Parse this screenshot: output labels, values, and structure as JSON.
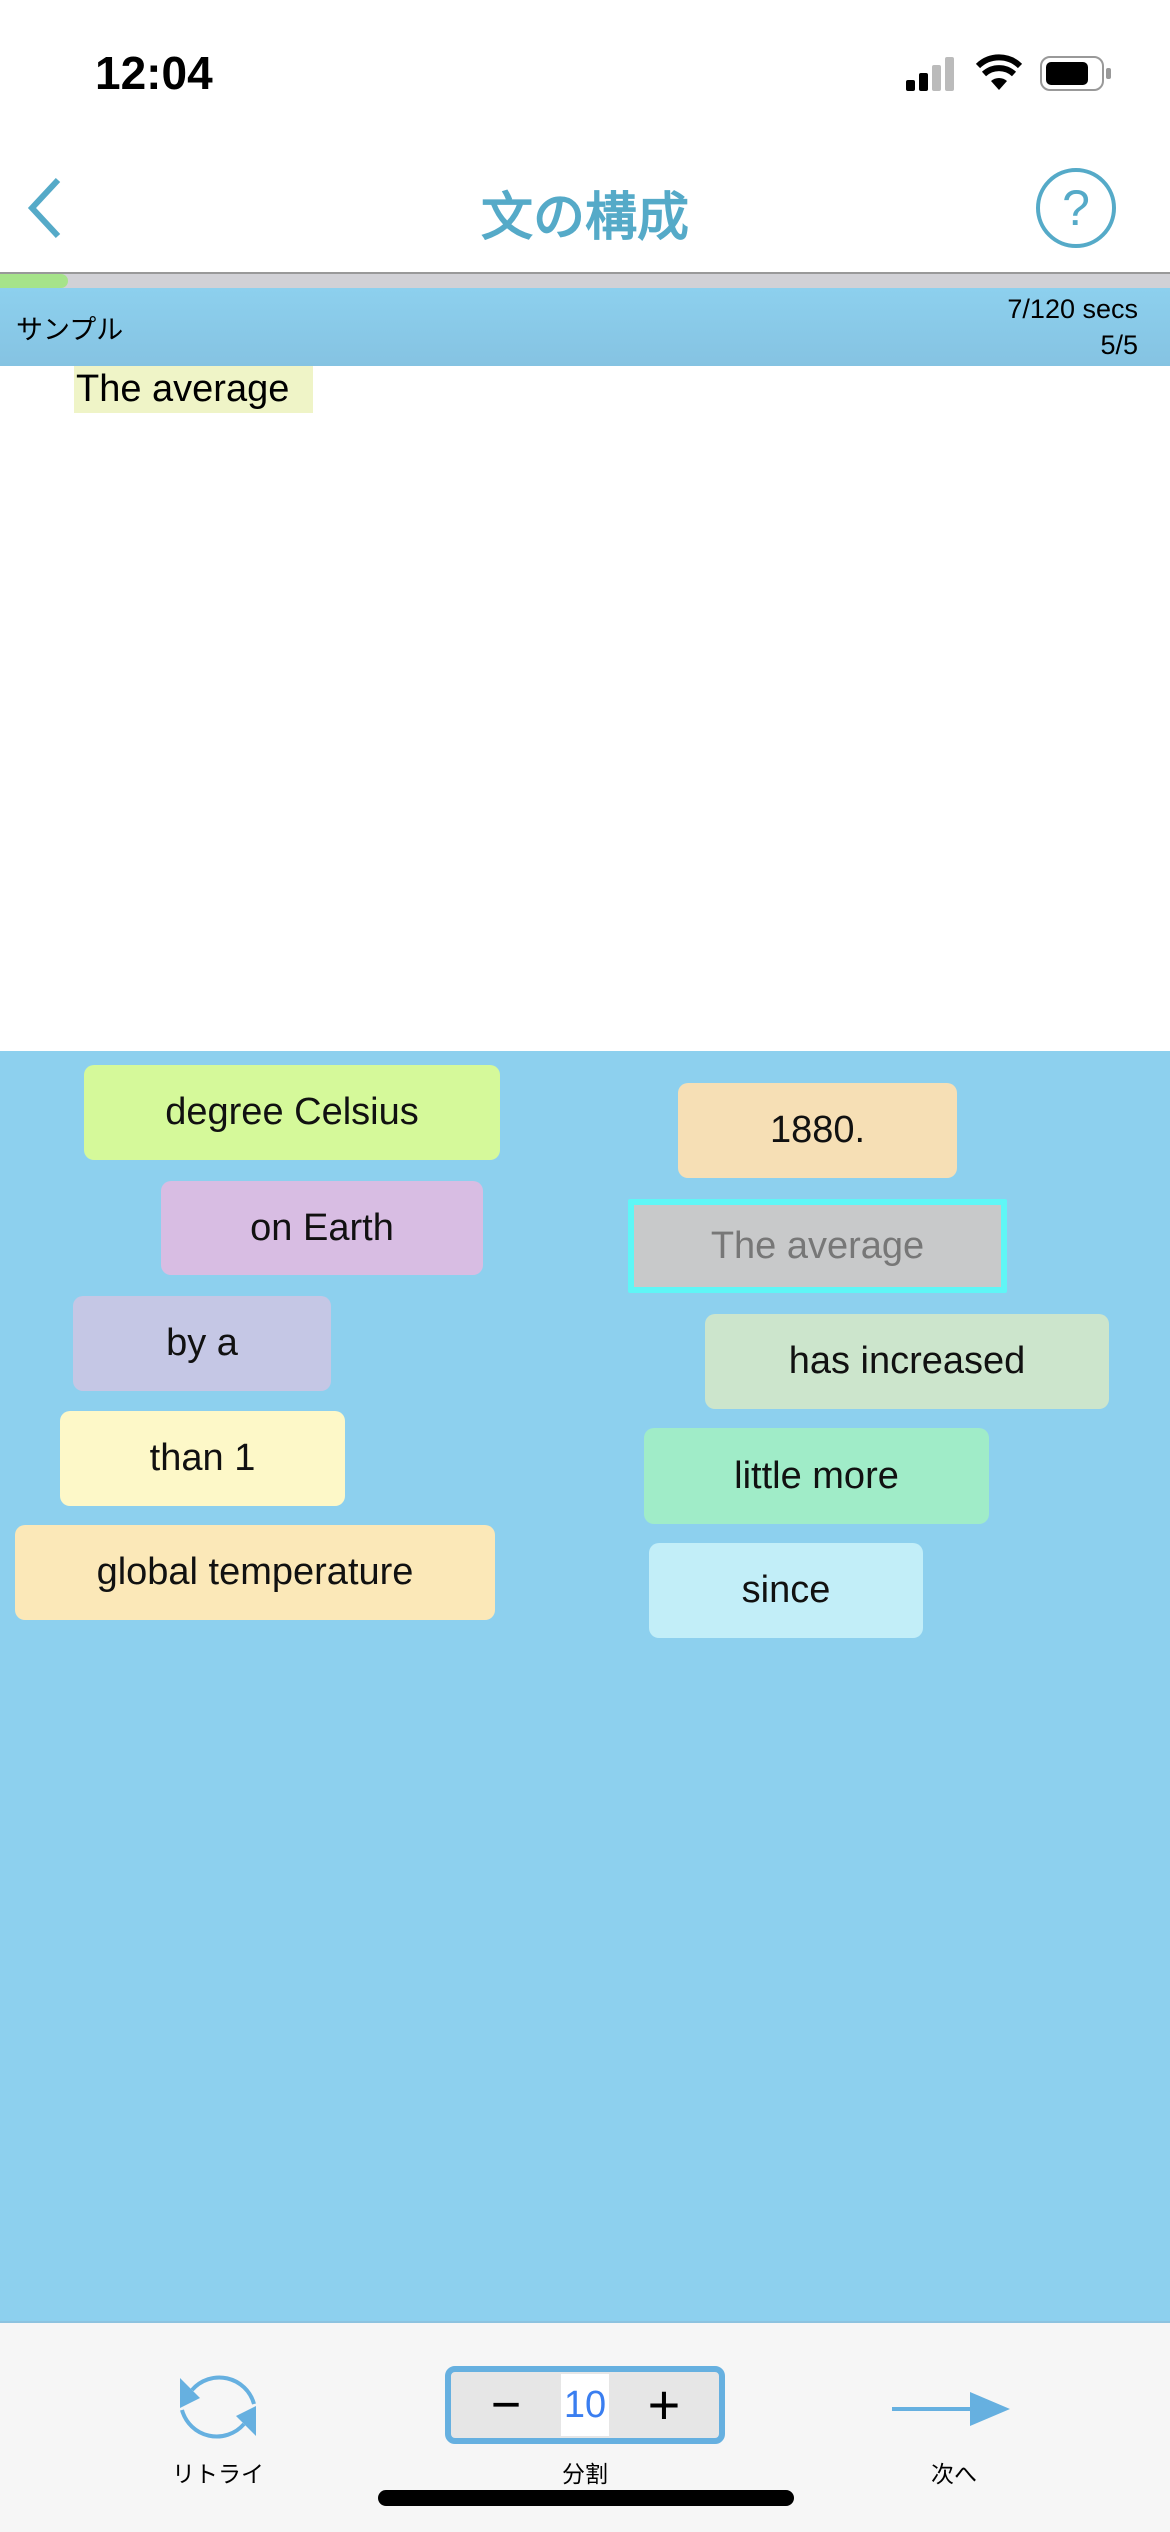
{
  "status_bar": {
    "time": "12:04"
  },
  "nav": {
    "title": "文の構成",
    "back_icon": "chevron-left-icon",
    "help_icon": "question-circle-icon",
    "accent": "#55aac8"
  },
  "progress": {
    "fraction": 0.058
  },
  "info": {
    "mode": "サンプル",
    "timer": "7/120 secs",
    "count": "5/5"
  },
  "answer": {
    "placed": [
      "The average"
    ]
  },
  "tiles": [
    {
      "text": "degree Celsius",
      "color": "#d5f99a"
    },
    {
      "text": "on Earth",
      "color": "#d8bde3"
    },
    {
      "text": "by a",
      "color": "#c5c7e5"
    },
    {
      "text": "than 1",
      "color": "#fdf8c8"
    },
    {
      "text": "global temperature",
      "color": "#fbe8b8"
    },
    {
      "text": "1880.",
      "color": "#f6dfb5"
    },
    {
      "text": "The average",
      "color": "#c8c9ca",
      "state": "used"
    },
    {
      "text": "has increased",
      "color": "#cce5cc"
    },
    {
      "text": "little more",
      "color": "#a0ecc8"
    },
    {
      "text": "since",
      "color": "#c2eef8"
    }
  ],
  "toolbar": {
    "retry_label": "リトライ",
    "split_label": "分割",
    "split_value": "10",
    "next_label": "次へ",
    "minus": "−",
    "plus": "+"
  }
}
